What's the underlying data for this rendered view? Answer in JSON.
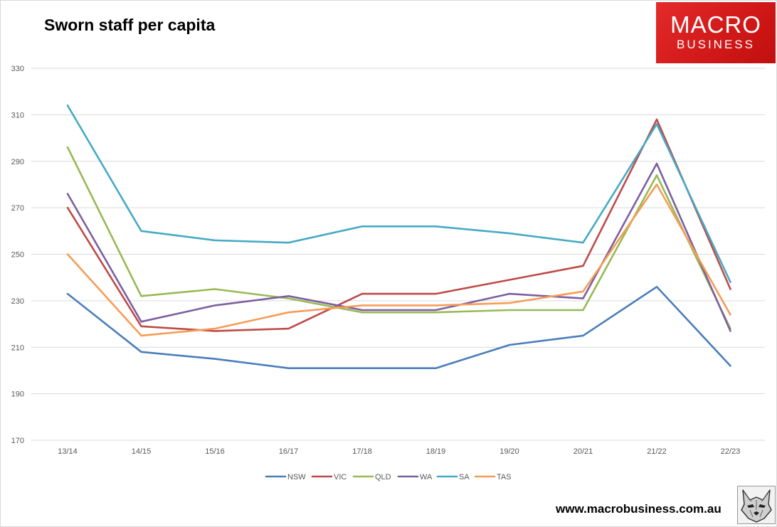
{
  "header": {
    "title": "Sworn staff per capita"
  },
  "logo": {
    "line1": "MACRO",
    "line2": "BUSINESS",
    "icon": "wolf-icon"
  },
  "footer": {
    "website": "www.macrobusiness.com.au"
  },
  "colors": {
    "NSW": "#4a7ebb",
    "VIC": "#be4b48",
    "QLD": "#98b954",
    "WA": "#7d5fa0",
    "SA": "#46aac5",
    "TAS": "#f59d56",
    "grid": "#d9d9d9",
    "brand": "#d91f1f"
  },
  "chart_data": {
    "type": "line",
    "title": "Sworn staff per capita",
    "xlabel": "",
    "ylabel": "",
    "categories": [
      "13/14",
      "14/15",
      "15/16",
      "16/17",
      "17/18",
      "18/19",
      "19/20",
      "20/21",
      "21/22",
      "22/23"
    ],
    "yticks": [
      170,
      190,
      210,
      230,
      250,
      270,
      290,
      310,
      330
    ],
    "ylim": [
      170,
      330
    ],
    "grid": true,
    "legend": "bottom",
    "series": [
      {
        "name": "NSW",
        "values": [
          233,
          208,
          205,
          201,
          201,
          201,
          211,
          215,
          236,
          202
        ]
      },
      {
        "name": "VIC",
        "values": [
          270,
          219,
          217,
          218,
          233,
          233,
          239,
          245,
          308,
          235
        ]
      },
      {
        "name": "QLD",
        "values": [
          296,
          232,
          235,
          231,
          225,
          225,
          226,
          226,
          284,
          218
        ]
      },
      {
        "name": "WA",
        "values": [
          276,
          221,
          228,
          232,
          226,
          226,
          233,
          231,
          289,
          217
        ]
      },
      {
        "name": "SA",
        "values": [
          314,
          260,
          256,
          255,
          262,
          262,
          259,
          255,
          306,
          238
        ]
      },
      {
        "name": "TAS",
        "values": [
          250,
          215,
          218,
          225,
          228,
          228,
          229,
          234,
          280,
          224
        ]
      }
    ]
  }
}
